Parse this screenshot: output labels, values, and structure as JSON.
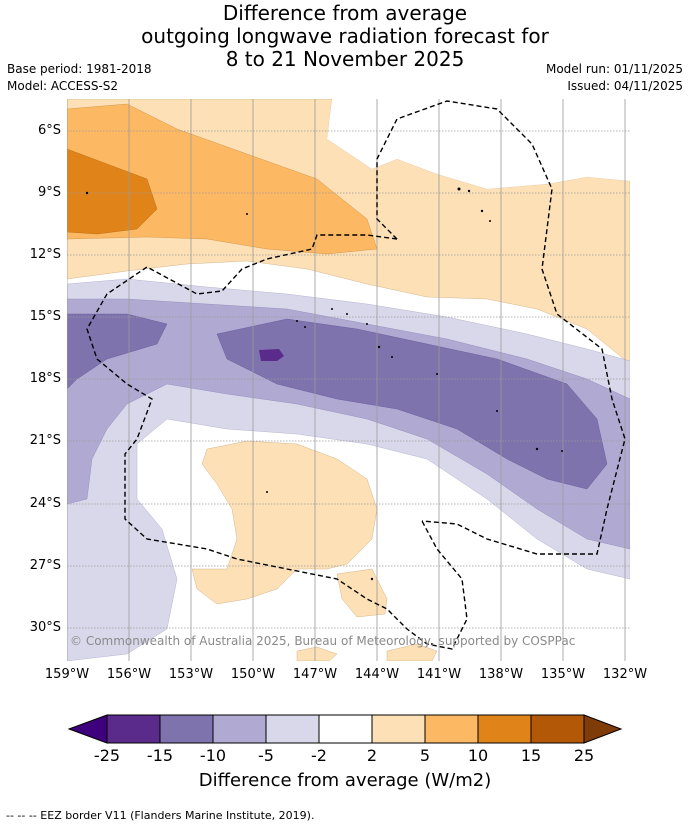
{
  "title": {
    "line1": "Difference from average",
    "line2": "outgoing longwave radiation forecast for",
    "line3": "8 to 21 November 2025"
  },
  "meta": {
    "base_period": "Base period: 1981-2018",
    "model": "Model: ACCESS-S2",
    "model_run": "Model run: 01/11/2025",
    "issued": "Issued: 04/11/2025"
  },
  "map": {
    "lat_labels": [
      "6°S",
      "9°S",
      "12°S",
      "15°S",
      "18°S",
      "21°S",
      "24°S",
      "27°S",
      "30°S"
    ],
    "lon_labels": [
      "159°W",
      "156°W",
      "153°W",
      "150°W",
      "147°W",
      "144°W",
      "141°W",
      "138°W",
      "135°W",
      "132°W"
    ],
    "copyright": "© Commonwealth of Australia 2025, Bureau of Meteorology, supported by COSPPac"
  },
  "colorbar": {
    "ticks": [
      "-25",
      "-15",
      "-10",
      "-5",
      "-2",
      "2",
      "5",
      "10",
      "15",
      "25"
    ],
    "colors": [
      "#3f007d",
      "#5a2b8a",
      "#7f73ad",
      "#b0aad2",
      "#d9d8ea",
      "#ffffff",
      "#fde0b6",
      "#fdb864",
      "#e08419",
      "#b35806",
      "#7f3b08"
    ],
    "title": "Difference from average (W/m2)"
  },
  "footer": "--  --  -- EEZ border V11 (Flanders Marine Institute, 2019)."
}
